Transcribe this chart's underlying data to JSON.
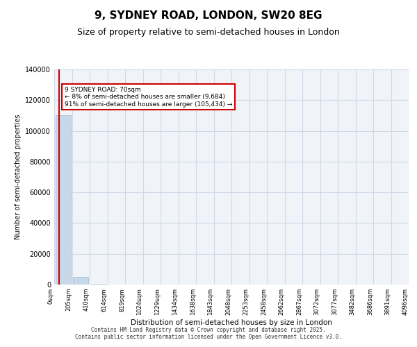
{
  "title_line1": "9, SYDNEY ROAD, LONDON, SW20 8EG",
  "title_line2": "Size of property relative to semi-detached houses in London",
  "xlabel": "Distribution of semi-detached houses by size in London",
  "ylabel": "Number of semi-detached properties",
  "bar_values": [
    110000,
    5000,
    500,
    200,
    150,
    100,
    80,
    60,
    50,
    40,
    30,
    25,
    20,
    15,
    12,
    10,
    8,
    6,
    5,
    4
  ],
  "bar_color": "#c8d8e8",
  "bar_edge_color": "#a0b8d0",
  "ylim": [
    0,
    140000
  ],
  "yticks": [
    0,
    20000,
    40000,
    60000,
    80000,
    100000,
    120000,
    140000
  ],
  "x_labels": [
    "0sqm",
    "205sqm",
    "410sqm",
    "614sqm",
    "819sqm",
    "1024sqm",
    "1229sqm",
    "1434sqm",
    "1638sqm",
    "1843sqm",
    "2048sqm",
    "2253sqm",
    "2458sqm",
    "2662sqm",
    "2867sqm",
    "3072sqm",
    "3077sqm",
    "3482sqm",
    "3686sqm",
    "3891sqm",
    "4096sqm"
  ],
  "property_size": 70,
  "property_label": "9 SYDNEY ROAD: 70sqm",
  "pct_smaller": "8%",
  "pct_larger": "91%",
  "n_smaller": "9,684",
  "n_larger": "105,434",
  "property_line_x": 0.35,
  "annotation_text_line1": "9 SYDNEY ROAD: 70sqm",
  "annotation_text_line2": "← 8% of semi-detached houses are smaller (9,684)",
  "annotation_text_line3": "91% of semi-detached houses are larger (105,434) →",
  "footer_line1": "Contains HM Land Registry data © Crown copyright and database right 2025.",
  "footer_line2": "Contains public sector information licensed under the Open Government Licence v3.0.",
  "grid_color": "#d0d8e8",
  "background_color": "#f0f4f8",
  "annotation_box_color": "#ffffff",
  "annotation_box_edge": "#cc0000",
  "red_line_color": "#cc0000"
}
